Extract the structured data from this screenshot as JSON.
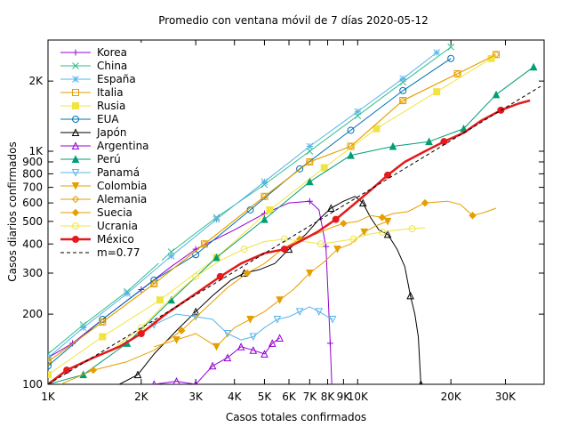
{
  "chart_data": {
    "type": "line",
    "title": "Promedio con ventana móvil de 7 días 2020-05-12",
    "xlabel": "Casos totales confirmados",
    "ylabel": "Casos diarios confirmados",
    "xscale": "log",
    "yscale": "log",
    "xlim": [
      1000,
      40000
    ],
    "ylim": [
      100,
      3000
    ],
    "legend_position": "top-left",
    "x_ticks": [
      {
        "value": 1000,
        "label": "1K"
      },
      {
        "value": 2000,
        "label": "2K"
      },
      {
        "value": 3000,
        "label": "3K"
      },
      {
        "value": 4000,
        "label": "4K"
      },
      {
        "value": 5000,
        "label": "5K"
      },
      {
        "value": 6000,
        "label": "6K"
      },
      {
        "value": 7000,
        "label": "7K"
      },
      {
        "value": 8000,
        "label": "8K"
      },
      {
        "value": 9000,
        "label": "9K"
      },
      {
        "value": 10000,
        "label": "10K"
      },
      {
        "value": 20000,
        "label": "20K"
      },
      {
        "value": 30000,
        "label": "30K"
      }
    ],
    "y_ticks": [
      {
        "value": 100,
        "label": "100"
      },
      {
        "value": 200,
        "label": "200"
      },
      {
        "value": 300,
        "label": "300"
      },
      {
        "value": 400,
        "label": "400"
      },
      {
        "value": 500,
        "label": "500"
      },
      {
        "value": 600,
        "label": "600"
      },
      {
        "value": 700,
        "label": "700"
      },
      {
        "value": 800,
        "label": "800"
      },
      {
        "value": 900,
        "label": "900"
      },
      {
        "value": 1000,
        "label": "1K"
      },
      {
        "value": 2000,
        "label": "2K"
      }
    ],
    "series": [
      {
        "name": "Korea",
        "color": "#9400d3",
        "marker": "plus",
        "width": 1,
        "points": [
          [
            1000,
            130
          ],
          [
            1200,
            150
          ],
          [
            1500,
            190
          ],
          [
            2000,
            255
          ],
          [
            2500,
            320
          ],
          [
            3000,
            380
          ],
          [
            4000,
            460
          ],
          [
            5000,
            540
          ],
          [
            6000,
            600
          ],
          [
            7000,
            610
          ],
          [
            7500,
            560
          ],
          [
            7900,
            390
          ],
          [
            8050,
            220
          ],
          [
            8150,
            150
          ],
          [
            8250,
            100
          ]
        ]
      },
      {
        "name": "China",
        "color": "#2ebd89",
        "marker": "x",
        "width": 1,
        "points": [
          [
            1000,
            135
          ],
          [
            1300,
            180
          ],
          [
            1800,
            250
          ],
          [
            2500,
            370
          ],
          [
            3500,
            520
          ],
          [
            5000,
            720
          ],
          [
            7000,
            1000
          ],
          [
            10000,
            1420
          ],
          [
            14000,
            1980
          ],
          [
            20000,
            2800
          ]
        ]
      },
      {
        "name": "España",
        "color": "#56b4e9",
        "marker": "star",
        "width": 1,
        "points": [
          [
            1000,
            130
          ],
          [
            1300,
            175
          ],
          [
            1800,
            245
          ],
          [
            2500,
            355
          ],
          [
            3500,
            510
          ],
          [
            5000,
            740
          ],
          [
            7000,
            1050
          ],
          [
            10000,
            1480
          ],
          [
            14000,
            2050
          ],
          [
            18000,
            2650
          ]
        ]
      },
      {
        "name": "Italia",
        "color": "#e69f00",
        "marker": "square-open",
        "width": 1,
        "points": [
          [
            1000,
            125
          ],
          [
            1500,
            185
          ],
          [
            2200,
            270
          ],
          [
            3200,
            400
          ],
          [
            5000,
            640
          ],
          [
            7000,
            900
          ],
          [
            9500,
            1050
          ],
          [
            14000,
            1650
          ],
          [
            21000,
            2150
          ],
          [
            28000,
            2600
          ]
        ]
      },
      {
        "name": "Rusia",
        "color": "#f0e442",
        "marker": "square-filled",
        "width": 1,
        "points": [
          [
            1000,
            110
          ],
          [
            1500,
            160
          ],
          [
            2300,
            230
          ],
          [
            3500,
            350
          ],
          [
            5200,
            560
          ],
          [
            7800,
            850
          ],
          [
            11500,
            1250
          ],
          [
            18000,
            1800
          ],
          [
            27000,
            2500
          ]
        ]
      },
      {
        "name": "EUA",
        "color": "#0072b2",
        "marker": "circle-open",
        "width": 1,
        "points": [
          [
            1000,
            120
          ],
          [
            1500,
            190
          ],
          [
            2200,
            280
          ],
          [
            3000,
            360
          ],
          [
            4500,
            560
          ],
          [
            6500,
            840
          ],
          [
            9500,
            1230
          ],
          [
            14000,
            1820
          ],
          [
            20000,
            2500
          ]
        ]
      },
      {
        "name": "Japón",
        "color": "#000000",
        "marker": "triangle-open",
        "width": 1,
        "points": [
          [
            1700,
            100
          ],
          [
            1950,
            110
          ],
          [
            2200,
            135
          ],
          [
            2600,
            170
          ],
          [
            3000,
            205
          ],
          [
            3400,
            240
          ],
          [
            3900,
            280
          ],
          [
            4300,
            300
          ],
          [
            4800,
            310
          ],
          [
            5400,
            330
          ],
          [
            6000,
            380
          ],
          [
            6800,
            440
          ],
          [
            7500,
            510
          ],
          [
            8200,
            570
          ],
          [
            9000,
            610
          ],
          [
            9800,
            640
          ],
          [
            10400,
            600
          ],
          [
            11000,
            520
          ],
          [
            11700,
            460
          ],
          [
            12500,
            440
          ],
          [
            13400,
            380
          ],
          [
            14200,
            320
          ],
          [
            14800,
            240
          ],
          [
            15300,
            200
          ],
          [
            15700,
            160
          ],
          [
            16000,
            100
          ]
        ]
      },
      {
        "name": "Argentina",
        "color": "#9400d3",
        "marker": "triangle-open",
        "width": 1,
        "points": [
          [
            2200,
            100
          ],
          [
            2600,
            103
          ],
          [
            3000,
            100
          ],
          [
            3400,
            120
          ],
          [
            3800,
            130
          ],
          [
            4200,
            145
          ],
          [
            4600,
            140
          ],
          [
            5000,
            135
          ],
          [
            5300,
            150
          ],
          [
            5600,
            158
          ]
        ]
      },
      {
        "name": "Perú",
        "color": "#009e73",
        "marker": "triangle-filled",
        "width": 1,
        "points": [
          [
            1000,
            100
          ],
          [
            1300,
            110
          ],
          [
            1800,
            150
          ],
          [
            2500,
            230
          ],
          [
            3500,
            350
          ],
          [
            5000,
            510
          ],
          [
            7000,
            740
          ],
          [
            9500,
            960
          ],
          [
            13000,
            1050
          ],
          [
            17000,
            1100
          ],
          [
            22000,
            1250
          ],
          [
            28000,
            1750
          ],
          [
            37000,
            2300
          ]
        ]
      },
      {
        "name": "Panamá",
        "color": "#56b4e9",
        "marker": "triangle-down-open",
        "width": 1,
        "points": [
          [
            1800,
            150
          ],
          [
            2200,
            180
          ],
          [
            2600,
            200
          ],
          [
            3000,
            195
          ],
          [
            3400,
            190
          ],
          [
            3800,
            165
          ],
          [
            4200,
            155
          ],
          [
            4600,
            160
          ],
          [
            5000,
            175
          ],
          [
            5500,
            190
          ],
          [
            6000,
            195
          ],
          [
            6500,
            205
          ],
          [
            7000,
            215
          ],
          [
            7500,
            205
          ],
          [
            8000,
            195
          ],
          [
            8300,
            190
          ]
        ]
      },
      {
        "name": "Colombia",
        "color": "#e69f00",
        "marker": "triangle-down-filled",
        "width": 1,
        "points": [
          [
            2200,
            145
          ],
          [
            2600,
            155
          ],
          [
            3000,
            165
          ],
          [
            3500,
            145
          ],
          [
            4000,
            175
          ],
          [
            4500,
            190
          ],
          [
            5000,
            205
          ],
          [
            5600,
            230
          ],
          [
            6200,
            255
          ],
          [
            7000,
            300
          ],
          [
            7800,
            335
          ],
          [
            8600,
            380
          ],
          [
            9500,
            400
          ],
          [
            10500,
            450
          ],
          [
            11500,
            480
          ],
          [
            12500,
            500
          ]
        ]
      },
      {
        "name": "Alemania",
        "color": "#e69f00",
        "marker": "diamond-open",
        "width": 1,
        "points": [
          [
            1000,
            125
          ],
          [
            1500,
            185
          ],
          [
            2200,
            270
          ],
          [
            3200,
            400
          ],
          [
            5000,
            640
          ],
          [
            7000,
            900
          ],
          [
            9500,
            1050
          ],
          [
            14000,
            1650
          ],
          [
            21000,
            2150
          ],
          [
            28000,
            2600
          ]
        ]
      },
      {
        "name": "Suecia",
        "color": "#e69f00",
        "marker": "diamond-filled",
        "width": 1,
        "points": [
          [
            1100,
            100
          ],
          [
            1400,
            115
          ],
          [
            1800,
            125
          ],
          [
            2200,
            140
          ],
          [
            2700,
            170
          ],
          [
            3200,
            210
          ],
          [
            3800,
            260
          ],
          [
            4400,
            300
          ],
          [
            5000,
            330
          ],
          [
            5700,
            380
          ],
          [
            6500,
            420
          ],
          [
            7300,
            440
          ],
          [
            8200,
            470
          ],
          [
            9000,
            490
          ],
          [
            10000,
            500
          ],
          [
            11000,
            530
          ],
          [
            12000,
            520
          ],
          [
            13000,
            540
          ],
          [
            14500,
            550
          ],
          [
            16500,
            600
          ],
          [
            19500,
            610
          ],
          [
            21500,
            590
          ],
          [
            23500,
            530
          ],
          [
            25500,
            545
          ],
          [
            28000,
            570
          ]
        ]
      },
      {
        "name": "Ucrania",
        "color": "#f0e442",
        "marker": "circle-open",
        "width": 1,
        "points": [
          [
            1600,
            140
          ],
          [
            2000,
            175
          ],
          [
            2500,
            235
          ],
          [
            3000,
            290
          ],
          [
            3600,
            340
          ],
          [
            4300,
            380
          ],
          [
            5000,
            410
          ],
          [
            5800,
            420
          ],
          [
            6700,
            410
          ],
          [
            7600,
            400
          ],
          [
            8600,
            410
          ],
          [
            9700,
            420
          ],
          [
            10800,
            440
          ],
          [
            12000,
            450
          ],
          [
            13500,
            460
          ],
          [
            15000,
            465
          ],
          [
            16500,
            470
          ]
        ]
      },
      {
        "name": "México",
        "color": "#e41a1c",
        "marker": "circle-filled",
        "width": 2.5,
        "points": [
          [
            1000,
            100
          ],
          [
            1150,
            115
          ],
          [
            1400,
            130
          ],
          [
            1700,
            145
          ],
          [
            2000,
            165
          ],
          [
            2400,
            200
          ],
          [
            3000,
            245
          ],
          [
            3600,
            290
          ],
          [
            4200,
            330
          ],
          [
            5000,
            365
          ],
          [
            5800,
            380
          ],
          [
            6500,
            410
          ],
          [
            7400,
            450
          ],
          [
            8500,
            510
          ],
          [
            9700,
            590
          ],
          [
            11000,
            680
          ],
          [
            12500,
            790
          ],
          [
            14200,
            900
          ],
          [
            16500,
            1000
          ],
          [
            19000,
            1100
          ],
          [
            22000,
            1200
          ],
          [
            25000,
            1350
          ],
          [
            29000,
            1500
          ],
          [
            33000,
            1600
          ],
          [
            36000,
            1650
          ]
        ]
      },
      {
        "name": "m=0.77",
        "color": "#000000",
        "marker": "none",
        "width": 1,
        "dash": true,
        "points": [
          [
            1000,
            100
          ],
          [
            39000,
            1900
          ]
        ]
      }
    ]
  }
}
